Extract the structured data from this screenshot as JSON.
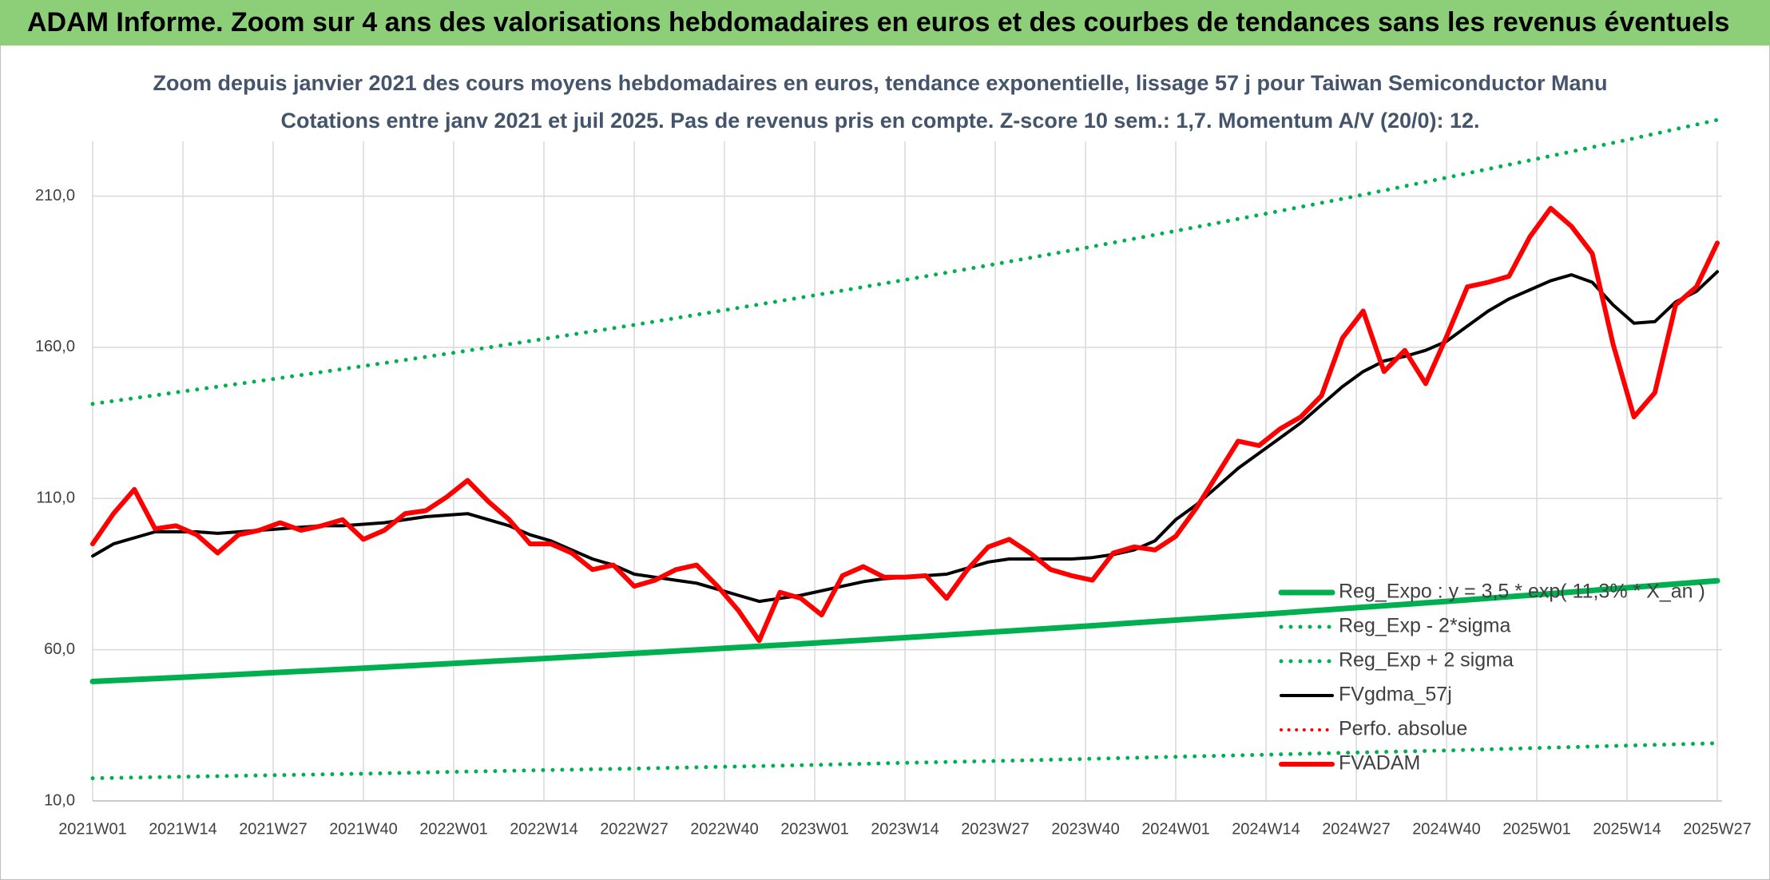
{
  "chart_data": {
    "type": "line",
    "header": "ADAM Informe. Zoom sur 4 ans des valorisations hebdomadaires en euros et des courbes de tendances sans les revenus éventuels",
    "title": "Zoom depuis janvier 2021 des cours moyens hebdomadaires en euros, tendance exponentielle, lissage 57 j pour Taiwan Semiconductor Manu",
    "subtitle": "Cotations entre janv 2021 et juil 2025. Pas de revenus pris en compte. Z-score 10 sem.: 1,7. Momentum A/V (20/0): 12.",
    "xlim": [
      0,
      234
    ],
    "xticks": [
      {
        "value": 0,
        "label": "2021W01"
      },
      {
        "value": 13,
        "label": "2021W14"
      },
      {
        "value": 26,
        "label": "2021W27"
      },
      {
        "value": 39,
        "label": "2021W40"
      },
      {
        "value": 52,
        "label": "2022W01"
      },
      {
        "value": 65,
        "label": "2022W14"
      },
      {
        "value": 78,
        "label": "2022W27"
      },
      {
        "value": 91,
        "label": "2022W40"
      },
      {
        "value": 104,
        "label": "2023W01"
      },
      {
        "value": 117,
        "label": "2023W14"
      },
      {
        "value": 130,
        "label": "2023W27"
      },
      {
        "value": 143,
        "label": "2023W40"
      },
      {
        "value": 156,
        "label": "2024W01"
      },
      {
        "value": 169,
        "label": "2024W14"
      },
      {
        "value": 182,
        "label": "2024W27"
      },
      {
        "value": 195,
        "label": "2024W40"
      },
      {
        "value": 208,
        "label": "2025W01"
      },
      {
        "value": 221,
        "label": "2025W14"
      },
      {
        "value": 234,
        "label": "2025W27"
      }
    ],
    "ylim": [
      10,
      240
    ],
    "yticks": [
      {
        "value": 10,
        "label": "10,0"
      },
      {
        "value": 60,
        "label": "60,0"
      },
      {
        "value": 110,
        "label": "110,0"
      },
      {
        "value": 160,
        "label": "160,0"
      },
      {
        "value": 210,
        "label": "210,0"
      }
    ],
    "grid": true,
    "legend": "lower right",
    "series": [
      {
        "name": "Reg_Expo : y = 3,5 * exp( 11,3% * X_an )",
        "color": "#00b050",
        "style": "solid",
        "width": 7,
        "x": [
          0,
          13,
          26,
          39,
          52,
          65,
          78,
          91,
          104,
          117,
          130,
          143,
          156,
          169,
          182,
          195,
          208,
          221,
          234
        ],
        "values": [
          49.5,
          50.9,
          52.4,
          53.9,
          55.5,
          57.1,
          58.8,
          60.5,
          62.2,
          64.0,
          65.9,
          67.8,
          69.8,
          71.8,
          73.9,
          76.0,
          78.2,
          80.5,
          82.8
        ]
      },
      {
        "name": "Reg_Exp - 2*sigma",
        "color": "#00b050",
        "style": "dotted",
        "width": 5,
        "x": [
          0,
          13,
          26,
          39,
          52,
          65,
          78,
          91,
          104,
          117,
          130,
          143,
          156,
          169,
          182,
          195,
          208,
          221,
          234
        ],
        "values": [
          17.5,
          18.0,
          18.5,
          19.0,
          19.6,
          20.2,
          20.7,
          21.3,
          21.9,
          22.6,
          23.2,
          23.9,
          24.6,
          25.3,
          26.0,
          26.7,
          27.5,
          28.3,
          29.1
        ]
      },
      {
        "name": "Reg_Exp + 2 sigma",
        "color": "#00b050",
        "style": "dotted",
        "width": 5,
        "x": [
          0,
          13,
          26,
          39,
          52,
          65,
          78,
          91,
          104,
          117,
          130,
          143,
          156,
          169,
          182,
          195,
          208,
          221,
          234
        ],
        "values": [
          141.3,
          145.4,
          149.5,
          153.8,
          158.2,
          162.8,
          167.4,
          172.3,
          177.2,
          182.3,
          187.5,
          192.9,
          198.5,
          204.2,
          210.0,
          216.1,
          222.3,
          228.6,
          235.2
        ]
      },
      {
        "name": "FVgdma_57j",
        "color": "#000000",
        "style": "solid",
        "width": 4,
        "x": [
          0,
          3,
          6,
          9,
          12,
          15,
          18,
          21,
          24,
          27,
          30,
          33,
          36,
          39,
          42,
          45,
          48,
          51,
          54,
          57,
          60,
          63,
          66,
          69,
          72,
          75,
          78,
          81,
          84,
          87,
          90,
          93,
          96,
          99,
          102,
          105,
          108,
          111,
          114,
          117,
          120,
          123,
          126,
          129,
          132,
          135,
          138,
          141,
          144,
          147,
          150,
          153,
          156,
          159,
          162,
          165,
          168,
          171,
          174,
          177,
          180,
          183,
          186,
          189,
          192,
          195,
          198,
          201,
          204,
          207,
          210,
          213,
          216,
          219,
          222,
          225,
          228,
          231,
          234
        ],
        "values": [
          91,
          95,
          97,
          99,
          99,
          99,
          98.5,
          99,
          99.5,
          100,
          100.5,
          101,
          101,
          101.5,
          102,
          103,
          104,
          104.5,
          105,
          103,
          101,
          98,
          96,
          93,
          90,
          88,
          85,
          84,
          83,
          82,
          80,
          78,
          76,
          77,
          78,
          79.5,
          81,
          82.5,
          83.5,
          84,
          84.5,
          85,
          87,
          89,
          90,
          90,
          90,
          90,
          90.5,
          91.5,
          93,
          96,
          103,
          108,
          114,
          120,
          125,
          130,
          135,
          141,
          147,
          152,
          155.5,
          157,
          159,
          162,
          167,
          172,
          176,
          179,
          182,
          184,
          181.5,
          174,
          168,
          168.5,
          175,
          178.5,
          185
        ]
      },
      {
        "name": "Perfo. absolue",
        "color": "#ff0000",
        "style": "dotted",
        "width": 4
      },
      {
        "name": "FVADAM",
        "color": "#ff0000",
        "style": "solid",
        "width": 6,
        "x": [
          0,
          3,
          6,
          9,
          12,
          15,
          18,
          21,
          24,
          27,
          30,
          33,
          36,
          39,
          42,
          45,
          48,
          51,
          54,
          57,
          60,
          63,
          66,
          69,
          72,
          75,
          78,
          81,
          84,
          87,
          90,
          93,
          96,
          99,
          102,
          105,
          108,
          111,
          114,
          117,
          120,
          123,
          126,
          129,
          132,
          135,
          138,
          141,
          144,
          147,
          150,
          153,
          156,
          159,
          162,
          165,
          168,
          171,
          174,
          177,
          180,
          183,
          186,
          189,
          192,
          195,
          198,
          201,
          204,
          207,
          210,
          213,
          216,
          219,
          222,
          225,
          228,
          231,
          234
        ],
        "values": [
          95,
          105,
          113,
          100,
          101,
          98,
          92,
          98,
          99.5,
          102,
          99.5,
          101,
          103,
          96.5,
          99.5,
          105,
          106,
          110.5,
          116,
          109,
          103,
          95,
          95,
          92,
          86.5,
          88,
          81,
          83,
          86.5,
          88,
          81,
          73,
          63,
          79,
          77,
          71.5,
          84.5,
          87.5,
          84,
          84,
          84.5,
          77,
          86.5,
          94,
          96.5,
          92,
          86.5,
          84.5,
          83,
          92,
          94,
          93,
          97.5,
          107,
          118,
          129,
          127.5,
          133,
          137,
          144,
          163,
          172,
          152,
          159,
          148,
          163.5,
          180,
          181.5,
          183.5,
          196.5,
          206,
          200,
          191,
          161,
          137,
          145,
          174,
          180,
          194.5
        ]
      }
    ]
  }
}
